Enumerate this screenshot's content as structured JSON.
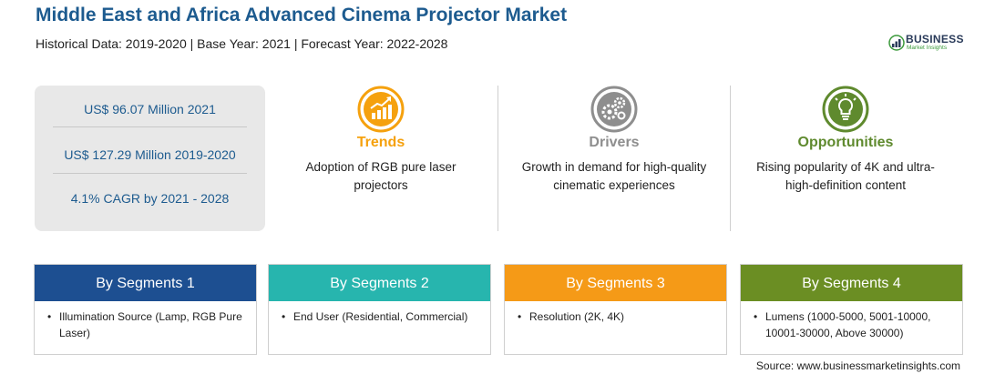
{
  "header": {
    "title": "Middle East and Africa Advanced Cinema Projector Market",
    "subtitle": "Historical Data: 2019-2020 | Base Year: 2021 | Forecast Year: 2022-2028"
  },
  "logo": {
    "name": "BUSINESS",
    "tagline": "Market Insights",
    "icon": "bar-growth-logo-icon"
  },
  "stats": [
    "US$ 96.07 Million 2021",
    "US$ 127.29 Million 2019-2020",
    "4.1% CAGR by 2021 - 2028"
  ],
  "columns": {
    "trends": {
      "title": "Trends",
      "desc": "Adoption of RGB pure laser projectors",
      "color": "#f5a10e",
      "icon": "rising-chart-icon"
    },
    "drivers": {
      "title": "Drivers",
      "desc": "Growth in demand for high-quality cinematic experiences",
      "color": "#8e8e8e",
      "icon": "gears-icon"
    },
    "opportunities": {
      "title": "Opportunities",
      "desc": "Rising popularity of 4K and ultra-high-definition content",
      "color": "#5f8a2e",
      "icon": "lightbulb-icon"
    }
  },
  "segments": [
    {
      "title": "By Segments 1",
      "bullet": "•",
      "text": "Illumination Source (Lamp, RGB Pure Laser)",
      "color": "#1d4f91"
    },
    {
      "title": "By Segments 2",
      "bullet": "•",
      "text": "End User (Residential, Commercial)",
      "color": "#27b5ae"
    },
    {
      "title": "By Segments 3",
      "bullet": "•",
      "text": "Resolution (2K, 4K)",
      "color": "#f59a17"
    },
    {
      "title": "By Segments 4",
      "bullet": "•",
      "text": "Lumens (1000-5000, 5001-10000, 10001-30000, Above 30000)",
      "color": "#6b8e23"
    }
  ],
  "source": "Source: www.businessmarketinsights.com"
}
